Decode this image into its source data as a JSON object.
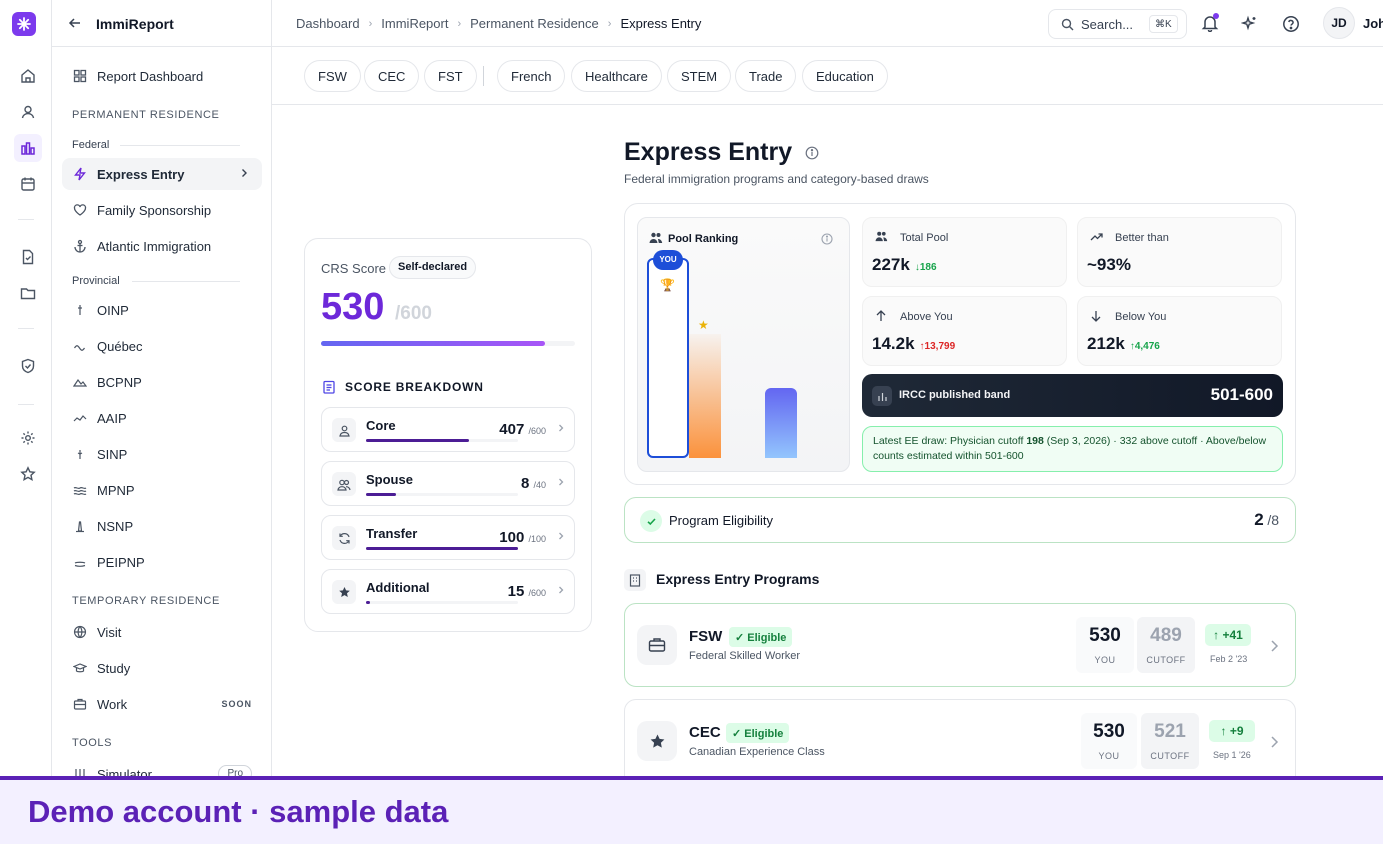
{
  "app": {
    "title": "ImmiReport"
  },
  "breadcrumb": [
    "Dashboard",
    "ImmiReport",
    "Permanent Residence",
    "Express Entry"
  ],
  "search": {
    "placeholder": "Search...",
    "shortcut": "⌘K"
  },
  "user": {
    "initials": "JD",
    "name": "John"
  },
  "sidebar": {
    "report_dashboard": "Report Dashboard",
    "section_pr": "PERMANENT RESIDENCE",
    "sub_federal": "Federal",
    "federal": [
      "Express Entry",
      "Family Sponsorship",
      "Atlantic Immigration"
    ],
    "sub_provincial": "Provincial",
    "provincial": [
      "OINP",
      "Québec",
      "BCPNP",
      "AAIP",
      "SINP",
      "MPNP",
      "NSNP",
      "PEIPNP"
    ],
    "section_tr": "TEMPORARY RESIDENCE",
    "temporary": [
      "Visit",
      "Study",
      "Work"
    ],
    "work_badge": "SOON",
    "section_tools": "TOOLS",
    "tools": [
      "Simulator"
    ],
    "simulator_badge": "Pro"
  },
  "chips": [
    "FSW",
    "CEC",
    "FST",
    "French",
    "Healthcare",
    "STEM",
    "Trade",
    "Education"
  ],
  "page": {
    "title": "Express Entry",
    "subtitle": "Federal immigration programs and category-based draws"
  },
  "crs": {
    "label": "CRS Score",
    "badge": "Self-declared",
    "score": "530",
    "max": "/600",
    "progress": 0.8833,
    "breakdown_title": "SCORE BREAKDOWN",
    "items": [
      {
        "label": "Core",
        "value": "407",
        "max": "/600",
        "fraction": 0.678
      },
      {
        "label": "Spouse",
        "value": "8",
        "max": "/40",
        "fraction": 0.2
      },
      {
        "label": "Transfer",
        "value": "100",
        "max": "/100",
        "fraction": 1.0
      },
      {
        "label": "Additional",
        "value": "15",
        "max": "/600",
        "fraction": 0.025
      }
    ]
  },
  "pool": {
    "title": "Pool Ranking",
    "you": "YOU",
    "bars": [
      {
        "fraction": 1.0,
        "color": "#ffffff"
      },
      {
        "fraction": 0.62,
        "color": "#fb923c"
      },
      {
        "fraction": 0.35,
        "color": "#818cf8"
      }
    ]
  },
  "stats": [
    {
      "title": "Total Pool",
      "value": "227k",
      "delta": "↓186",
      "delta_color": "#16a34a"
    },
    {
      "title": "Better than",
      "value": "~93%",
      "delta": "",
      "delta_color": "#16a34a"
    },
    {
      "title": "Above You",
      "value": "14.2k",
      "delta": "↑13,799",
      "delta_color": "#dc2626"
    },
    {
      "title": "Below You",
      "value": "212k",
      "delta": "↑4,476",
      "delta_color": "#16a34a"
    }
  ],
  "band": {
    "label": "IRCC published band",
    "value": "501-600"
  },
  "draw_note": {
    "pre": "Latest EE draw: Physician cutoff ",
    "bold": "198",
    "post": " (Sep 3, 2026) · 332 above cutoff · Above/below counts estimated within 501-600"
  },
  "eligibility": {
    "label": "Program Eligibility",
    "count": "2",
    "total": "/8"
  },
  "programs": {
    "title": "Express Entry Programs",
    "items": [
      {
        "code": "FSW",
        "badge": "✓ Eligible",
        "name": "Federal Skilled Worker",
        "you": "530",
        "you_label": "YOU",
        "cutoff": "489",
        "cutoff_label": "CUTOFF",
        "diff": "+41",
        "date": "Feb 2 '23"
      },
      {
        "code": "CEC",
        "badge": "✓ Eligible",
        "name": "Canadian Experience Class",
        "you": "530",
        "you_label": "YOU",
        "cutoff": "521",
        "cutoff_label": "CUTOFF",
        "diff": "+9",
        "date": "Sep 1 '26"
      }
    ]
  },
  "banner": {
    "text": "Demo account · sample data"
  }
}
